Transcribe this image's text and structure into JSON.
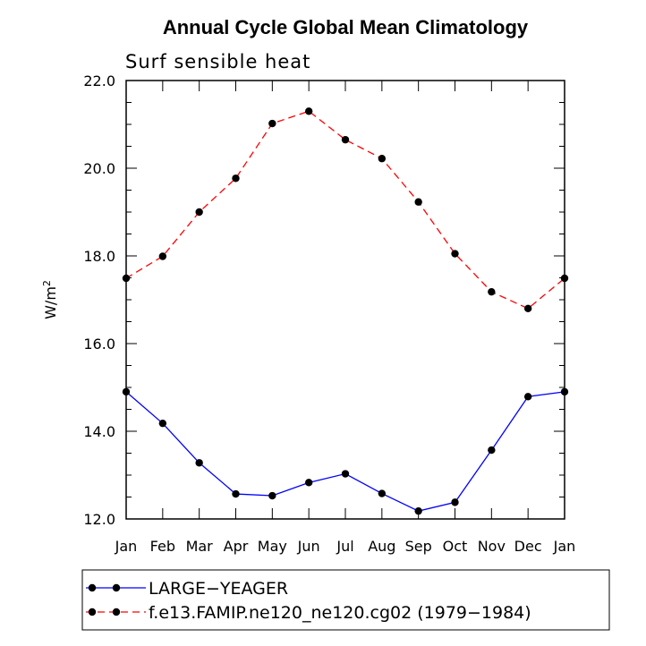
{
  "chart_data": {
    "type": "line",
    "title": "Annual Cycle Global Mean Climatology",
    "subtitle": "Surf sensible heat",
    "xlabel": "",
    "ylabel": "W/m",
    "ylabel_superscript": "2",
    "categories": [
      "Jan",
      "Feb",
      "Mar",
      "Apr",
      "May",
      "Jun",
      "Jul",
      "Aug",
      "Sep",
      "Oct",
      "Nov",
      "Dec",
      "Jan"
    ],
    "ylim": [
      12.0,
      22.0
    ],
    "yticks": [
      12.0,
      14.0,
      16.0,
      18.0,
      20.0,
      22.0
    ],
    "ytick_labels": [
      "12.0",
      "14.0",
      "16.0",
      "18.0",
      "20.0",
      "22.0"
    ],
    "series": [
      {
        "name": "LARGE−YEAGER",
        "color": "#0000ff",
        "dash": "solid",
        "values": [
          14.9,
          14.18,
          13.28,
          12.57,
          12.53,
          12.83,
          13.03,
          12.58,
          12.18,
          12.38,
          13.57,
          14.79,
          14.9
        ]
      },
      {
        "name": "f.e13.FAMIP.ne120_ne120.cg02 (1979−1984)",
        "color": "#ff0000",
        "dash": "dashed",
        "values": [
          17.49,
          17.99,
          19.0,
          19.77,
          21.02,
          21.3,
          20.65,
          20.22,
          19.23,
          18.05,
          17.18,
          16.8,
          17.49
        ]
      }
    ],
    "legend_position": "bottom"
  }
}
